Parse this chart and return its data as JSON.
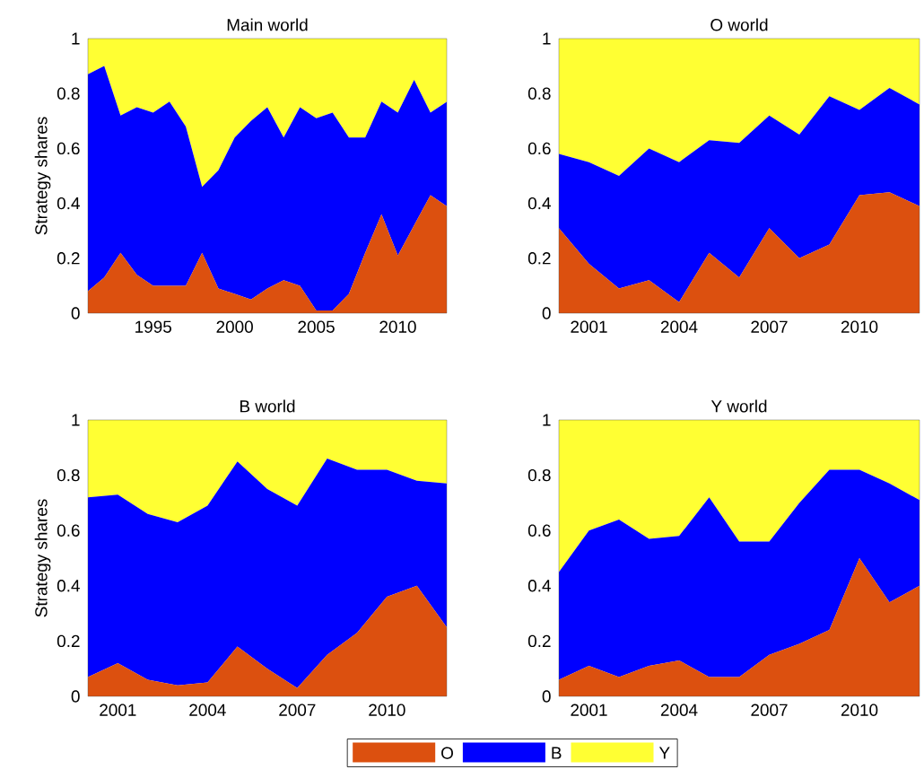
{
  "chart_data": [
    {
      "type": "area",
      "stacked": true,
      "title": "Main world",
      "ylabel": "Strategy shares",
      "x": [
        1991,
        1992,
        1993,
        1994,
        1995,
        1996,
        1997,
        1998,
        1999,
        2000,
        2001,
        2002,
        2003,
        2004,
        2005,
        2006,
        2007,
        2008,
        2009,
        2010,
        2011,
        2012,
        2013
      ],
      "series": [
        {
          "color": "#dc500f",
          "values": [
            0.08,
            0.13,
            0.22,
            0.14,
            0.1,
            0.1,
            0.1,
            0.22,
            0.09,
            0.07,
            0.05,
            0.09,
            0.12,
            0.1,
            0.01,
            0.01,
            0.07,
            0.22,
            0.36,
            0.21,
            0.32,
            0.43,
            0.39
          ]
        },
        {
          "color": "#0000ff",
          "values": [
            0.79,
            0.77,
            0.5,
            0.61,
            0.63,
            0.67,
            0.58,
            0.24,
            0.43,
            0.57,
            0.65,
            0.66,
            0.52,
            0.65,
            0.7,
            0.72,
            0.57,
            0.42,
            0.41,
            0.52,
            0.53,
            0.3,
            0.38
          ]
        },
        {
          "color": "#ffff33",
          "values": [
            0.13,
            0.1,
            0.28,
            0.25,
            0.27,
            0.23,
            0.32,
            0.54,
            0.48,
            0.36,
            0.3,
            0.25,
            0.36,
            0.25,
            0.29,
            0.27,
            0.36,
            0.36,
            0.23,
            0.27,
            0.15,
            0.27,
            0.23
          ]
        }
      ],
      "xlim": [
        1991,
        2013
      ],
      "ylim": [
        0,
        1
      ],
      "xticks": [
        1995,
        2000,
        2005,
        2010
      ],
      "yticks": [
        0,
        0.2,
        0.4,
        0.6,
        0.8,
        1
      ]
    },
    {
      "type": "area",
      "stacked": true,
      "title": "O world",
      "x": [
        2000,
        2001,
        2002,
        2003,
        2004,
        2005,
        2006,
        2007,
        2008,
        2009,
        2010,
        2011,
        2012
      ],
      "series": [
        {
          "color": "#dc500f",
          "values": [
            0.31,
            0.18,
            0.09,
            0.12,
            0.04,
            0.22,
            0.13,
            0.31,
            0.2,
            0.25,
            0.43,
            0.44,
            0.39
          ]
        },
        {
          "color": "#0000ff",
          "values": [
            0.27,
            0.37,
            0.41,
            0.48,
            0.51,
            0.41,
            0.49,
            0.41,
            0.45,
            0.54,
            0.31,
            0.38,
            0.37
          ]
        },
        {
          "color": "#ffff33",
          "values": [
            0.42,
            0.45,
            0.5,
            0.4,
            0.45,
            0.37,
            0.38,
            0.28,
            0.35,
            0.21,
            0.26,
            0.18,
            0.24
          ]
        }
      ],
      "xlim": [
        2000,
        2012
      ],
      "ylim": [
        0,
        1
      ],
      "xticks": [
        2001,
        2004,
        2007,
        2010
      ],
      "yticks": [
        0,
        0.2,
        0.4,
        0.6,
        0.8,
        1
      ]
    },
    {
      "type": "area",
      "stacked": true,
      "title": "B world",
      "ylabel": "Strategy shares",
      "x": [
        2000,
        2001,
        2002,
        2003,
        2004,
        2005,
        2006,
        2007,
        2008,
        2009,
        2010,
        2011,
        2012
      ],
      "series": [
        {
          "color": "#dc500f",
          "values": [
            0.07,
            0.12,
            0.06,
            0.04,
            0.05,
            0.18,
            0.1,
            0.03,
            0.15,
            0.23,
            0.36,
            0.4,
            0.25
          ]
        },
        {
          "color": "#0000ff",
          "values": [
            0.65,
            0.61,
            0.6,
            0.59,
            0.64,
            0.67,
            0.65,
            0.66,
            0.71,
            0.59,
            0.46,
            0.38,
            0.52
          ]
        },
        {
          "color": "#ffff33",
          "values": [
            0.28,
            0.27,
            0.34,
            0.37,
            0.31,
            0.15,
            0.25,
            0.31,
            0.14,
            0.18,
            0.18,
            0.22,
            0.23
          ]
        }
      ],
      "xlim": [
        2000,
        2012
      ],
      "ylim": [
        0,
        1
      ],
      "xticks": [
        2001,
        2004,
        2007,
        2010
      ],
      "yticks": [
        0,
        0.2,
        0.4,
        0.6,
        0.8,
        1
      ]
    },
    {
      "type": "area",
      "stacked": true,
      "title": "Y world",
      "x": [
        2000,
        2001,
        2002,
        2003,
        2004,
        2005,
        2006,
        2007,
        2008,
        2009,
        2010,
        2011,
        2012
      ],
      "series": [
        {
          "name": "O",
          "color": "#dc500f",
          "values": [
            0.06,
            0.11,
            0.07,
            0.11,
            0.13,
            0.07,
            0.07,
            0.15,
            0.19,
            0.24,
            0.5,
            0.34,
            0.4
          ]
        },
        {
          "name": "B",
          "color": "#0000ff",
          "values": [
            0.39,
            0.49,
            0.57,
            0.46,
            0.45,
            0.65,
            0.49,
            0.41,
            0.51,
            0.58,
            0.32,
            0.43,
            0.31
          ]
        },
        {
          "name": "Y",
          "color": "#ffff33",
          "values": [
            0.55,
            0.4,
            0.36,
            0.43,
            0.42,
            0.28,
            0.44,
            0.44,
            0.3,
            0.18,
            0.18,
            0.23,
            0.29
          ]
        }
      ],
      "xlim": [
        2000,
        2012
      ],
      "ylim": [
        0,
        1
      ],
      "xticks": [
        2001,
        2004,
        2007,
        2010
      ],
      "yticks": [
        0,
        0.2,
        0.4,
        0.6,
        0.8,
        1
      ],
      "legend": "bottom"
    }
  ]
}
